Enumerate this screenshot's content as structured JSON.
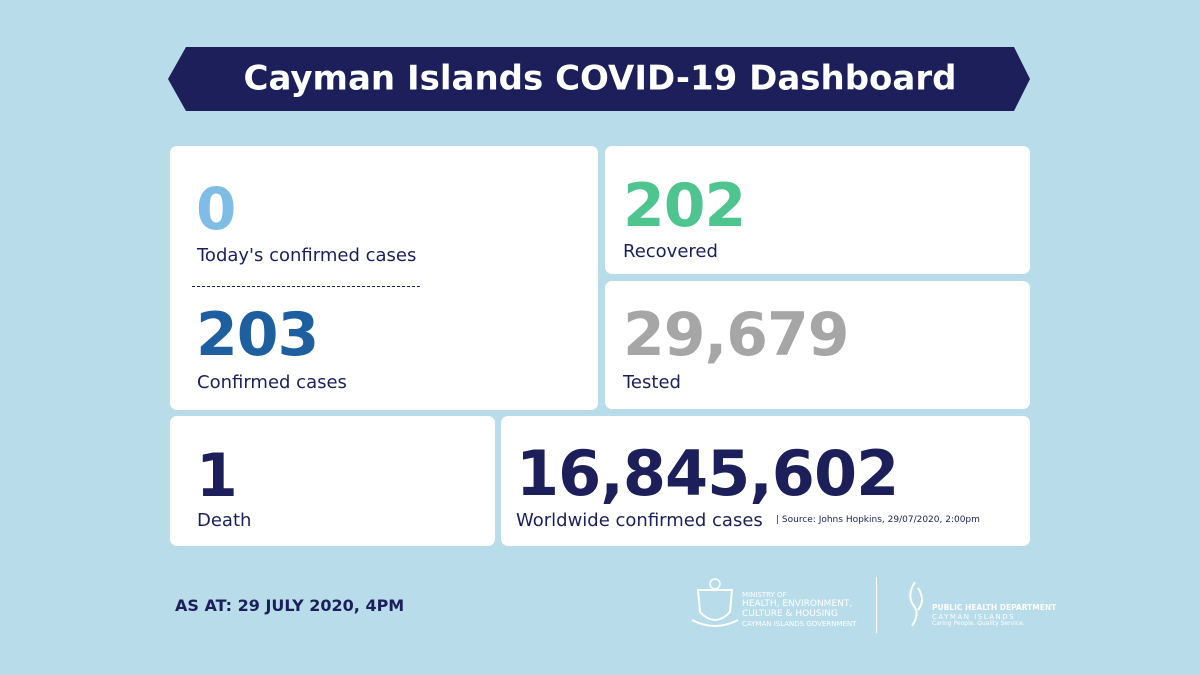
{
  "header": {
    "title": "Cayman Islands COVID-19 Dashboard"
  },
  "cards": [
    {
      "value": "0",
      "label": "Today's confirmed cases"
    },
    {
      "value": "203",
      "label": "Confirmed cases"
    },
    {
      "value": "202",
      "label": "Recovered"
    },
    {
      "value": "29,679",
      "label": "Tested"
    },
    {
      "value": "1",
      "label": "Death"
    },
    {
      "value": "16,845,602",
      "label": "Worldwide confirmed cases",
      "note": "| Source: Johns Hopkins, 29/07/2020, 2:00pm"
    }
  ],
  "footer": {
    "as_at": "AS AT: 29 JULY 2020, 4PM",
    "ministry": {
      "line1": "MINISTRY OF",
      "line2": "HEALTH, ENVIRONMENT,",
      "line3": "CULTURE & HOUSING",
      "line4": "CAYMAN ISLANDS GOVERNMENT"
    },
    "phd": {
      "line1": "PUBLIC HEALTH DEPARTMENT",
      "line2": "CAYMAN ISLANDS",
      "line3": "Caring People. Quality Service."
    }
  }
}
